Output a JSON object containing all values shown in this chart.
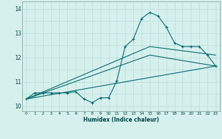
{
  "xlabel": "Humidex (Indice chaleur)",
  "xlim": [
    -0.5,
    23.5
  ],
  "ylim": [
    9.8,
    14.3
  ],
  "ytick_vals": [
    10,
    11,
    12,
    13,
    14
  ],
  "ytick_labels": [
    "10",
    "11",
    "12",
    "13",
    "14"
  ],
  "xtick_vals": [
    0,
    1,
    2,
    3,
    4,
    5,
    6,
    7,
    8,
    9,
    10,
    11,
    12,
    13,
    14,
    15,
    16,
    17,
    18,
    19,
    20,
    21,
    22,
    23
  ],
  "xtick_labels": [
    "0",
    "1",
    "2",
    "3",
    "4",
    "5",
    "6",
    "7",
    "8",
    "9",
    "10",
    "11",
    "12",
    "13",
    "14",
    "15",
    "16",
    "17",
    "18",
    "19",
    "20",
    "21",
    "22",
    "23"
  ],
  "background_color": "#d6f0ee",
  "grid_color": "#b8dcd8",
  "line_color": "#006868",
  "main_x": [
    0,
    1,
    2,
    3,
    4,
    5,
    6,
    7,
    8,
    9,
    10,
    11,
    12,
    13,
    14,
    15,
    16,
    17,
    18,
    19,
    20,
    21,
    22,
    23
  ],
  "main_y": [
    10.3,
    10.55,
    10.55,
    10.55,
    10.55,
    10.55,
    10.6,
    10.3,
    10.15,
    10.35,
    10.35,
    11.05,
    12.45,
    12.75,
    13.6,
    13.85,
    13.7,
    13.25,
    12.6,
    12.45,
    12.45,
    12.45,
    12.1,
    11.65
  ],
  "trend1_x": [
    0,
    23
  ],
  "trend1_y": [
    10.3,
    11.65
  ],
  "trend2_x": [
    0,
    15,
    23
  ],
  "trend2_y": [
    10.3,
    12.1,
    11.65
  ],
  "trend3_x": [
    0,
    15,
    23
  ],
  "trend3_y": [
    10.3,
    12.45,
    12.1
  ]
}
